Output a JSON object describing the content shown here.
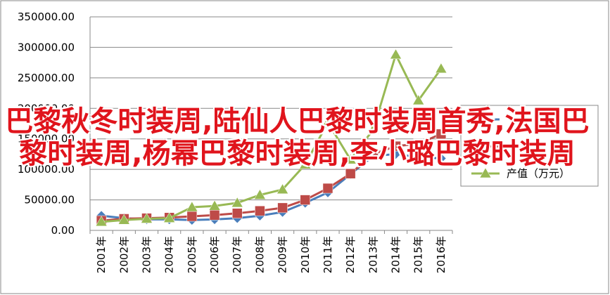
{
  "chart_data": {
    "type": "line",
    "categories": [
      "2001年",
      "2002年",
      "2003年",
      "2004年",
      "2005年",
      "2006年",
      "2007年",
      "2008年",
      "2009年",
      "2010年",
      "2011年",
      "2012年",
      "2013年",
      "2014年",
      "2015年",
      "2016年"
    ],
    "series": [
      {
        "color": "#4a7ebb",
        "marker": "diamond",
        "values": [
          24000,
          20000,
          18000,
          18000,
          17000,
          18000,
          20000,
          24000,
          30000,
          45000,
          62000,
          92000,
          122000,
          125000,
          120000,
          118000
        ]
      },
      {
        "color": "#be4b48",
        "marker": "square",
        "values": [
          16000,
          19000,
          20000,
          21000,
          23000,
          25000,
          28000,
          32000,
          37000,
          50000,
          69000,
          93000,
          125000,
          138000,
          142000,
          158000
        ]
      },
      {
        "name": "产值（万元）",
        "color": "#98b954",
        "marker": "triangle",
        "values": [
          14000,
          17000,
          19000,
          20000,
          38000,
          40000,
          45000,
          58000,
          67000,
          108000,
          177000,
          116000,
          165000,
          288000,
          213000,
          265000
        ]
      }
    ],
    "ylim": [
      0,
      350000
    ],
    "yticks": [
      {
        "value": 0,
        "label": "0.00"
      },
      {
        "value": 50000,
        "label": "50000.00"
      },
      {
        "value": 100000,
        "label": "100000.00"
      },
      {
        "value": 150000,
        "label": "150000.00"
      },
      {
        "value": 200000,
        "label": "200000.00"
      },
      {
        "value": 250000,
        "label": "250000.00"
      },
      {
        "value": 300000,
        "label": "300000.00"
      },
      {
        "value": 350000,
        "label": "350000.00"
      }
    ],
    "grid": true
  },
  "overlay": {
    "text": "巴黎秋冬时装周,陆仙人巴黎时装周首秀,法国巴黎时装周,杨幂巴黎时装周,李小璐巴黎时装周"
  }
}
